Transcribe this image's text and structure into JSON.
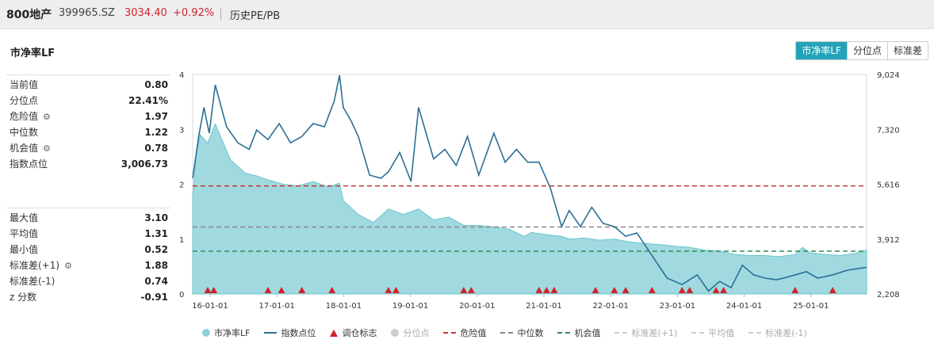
{
  "header": {
    "name": "800地产",
    "code": "399965.SZ",
    "price": "3034.40",
    "change": "+0.92%",
    "tab": "历史PE/PB"
  },
  "section_title": "市净率LF",
  "buttons": [
    "市净率LF",
    "分位点",
    "标准差"
  ],
  "stats_top": [
    {
      "label": "当前值",
      "value": "0.80",
      "gear": false
    },
    {
      "label": "分位点",
      "value": "22.41%",
      "gear": false
    },
    {
      "label": "危险值",
      "value": "1.97",
      "gear": true
    },
    {
      "label": "中位数",
      "value": "1.22",
      "gear": false
    },
    {
      "label": "机会值",
      "value": "0.78",
      "gear": true
    },
    {
      "label": "指数点位",
      "value": "3,006.73",
      "gear": false
    }
  ],
  "stats_bottom": [
    {
      "label": "最大值",
      "value": "3.10",
      "gear": false
    },
    {
      "label": "平均值",
      "value": "1.31",
      "gear": false
    },
    {
      "label": "最小值",
      "value": "0.52",
      "gear": false
    },
    {
      "label": "标准差(+1)",
      "value": "1.88",
      "gear": true
    },
    {
      "label": "标准差(-1)",
      "value": "0.74",
      "gear": false
    },
    {
      "label": "z 分数",
      "value": "-0.91",
      "gear": false
    }
  ],
  "legend": [
    {
      "label": "市净率LF",
      "type": "dot",
      "color": "#8fd3da",
      "dim": false
    },
    {
      "label": "指数点位",
      "type": "line",
      "color": "#2a6f97",
      "dim": false
    },
    {
      "label": "调仓标志",
      "type": "triangle",
      "color": "#d0232b",
      "dim": false
    },
    {
      "label": "分位点",
      "type": "dot",
      "color": "#cccccc",
      "dim": true
    },
    {
      "label": "危险值",
      "type": "dash",
      "color": "#c0392b",
      "dim": false
    },
    {
      "label": "中位数",
      "type": "dash",
      "color": "#888888",
      "dim": false
    },
    {
      "label": "机会值",
      "type": "dash",
      "color": "#2e8b57",
      "dim": false
    },
    {
      "label": "标准差(+1)",
      "type": "dash",
      "color": "#cccccc",
      "dim": true
    },
    {
      "label": "平均值",
      "type": "dash",
      "color": "#cccccc",
      "dim": true
    },
    {
      "label": "标准差(-1)",
      "type": "dash",
      "color": "#cccccc",
      "dim": true
    }
  ],
  "chart_data": {
    "type": "area",
    "x_ticks": [
      "16-01-01",
      "17-01-01",
      "18-01-01",
      "19-01-01",
      "20-01-01",
      "21-01-01",
      "22-01-01",
      "23-01-01",
      "24-01-01",
      "25-01-01"
    ],
    "y_left": {
      "ticks": [
        "0",
        "1",
        "2",
        "3",
        "4"
      ],
      "range": [
        0,
        4
      ]
    },
    "y_right": {
      "ticks": [
        "2,208",
        "3,912",
        "5,616",
        "7,320",
        "9,024"
      ],
      "range": [
        2208,
        9024
      ]
    },
    "reference_lines": {
      "danger": 1.97,
      "median": 1.22,
      "opportunity": 0.78
    },
    "colors": {
      "area": "#8fd3da",
      "area_stroke": "#6cc4cc",
      "index": "#2a6f97",
      "danger": "#c0392b",
      "median": "#888888",
      "opportunity": "#2e8b57",
      "marker": "#d0232b"
    },
    "series": [
      {
        "name": "市净率LF",
        "x": [
          0,
          0.05,
          0.1,
          0.2,
          0.3,
          0.5,
          0.7,
          0.85,
          1.0,
          1.2,
          1.4,
          1.6,
          1.8,
          1.95,
          2.0,
          2.2,
          2.4,
          2.6,
          2.8,
          3.0,
          3.2,
          3.4,
          3.6,
          3.8,
          4.0,
          4.2,
          4.4,
          4.5,
          4.7,
          4.9,
          5.0,
          5.2,
          5.4,
          5.6,
          5.8,
          6.0,
          6.2,
          6.4,
          6.6,
          6.8,
          7.0,
          7.2,
          7.4,
          7.6,
          7.8,
          8.0,
          8.1,
          8.2,
          8.4,
          8.6,
          8.8,
          8.95
        ],
        "values": [
          1.75,
          2.55,
          2.9,
          2.75,
          3.1,
          2.45,
          2.2,
          2.15,
          2.08,
          2.0,
          1.97,
          2.05,
          1.95,
          2.02,
          1.7,
          1.45,
          1.3,
          1.55,
          1.45,
          1.55,
          1.35,
          1.4,
          1.25,
          1.25,
          1.22,
          1.18,
          1.05,
          1.12,
          1.08,
          1.05,
          1.0,
          1.02,
          0.98,
          1.0,
          0.95,
          0.92,
          0.9,
          0.87,
          0.85,
          0.8,
          0.78,
          0.72,
          0.7,
          0.7,
          0.68,
          0.72,
          0.85,
          0.75,
          0.72,
          0.7,
          0.74,
          0.8
        ]
      },
      {
        "name": "指数点位",
        "x": [
          0,
          0.08,
          0.15,
          0.22,
          0.3,
          0.45,
          0.6,
          0.75,
          0.85,
          1.0,
          1.15,
          1.3,
          1.45,
          1.6,
          1.75,
          1.88,
          1.95,
          2.0,
          2.1,
          2.2,
          2.35,
          2.5,
          2.6,
          2.75,
          2.9,
          3.0,
          3.2,
          3.35,
          3.5,
          3.65,
          3.8,
          4.0,
          4.15,
          4.3,
          4.45,
          4.6,
          4.75,
          4.9,
          5.0,
          5.15,
          5.3,
          5.45,
          5.6,
          5.75,
          5.9,
          6.1,
          6.3,
          6.5,
          6.7,
          6.85,
          7.0,
          7.15,
          7.3,
          7.45,
          7.6,
          7.75,
          7.85,
          8.0,
          8.15,
          8.3,
          8.5,
          8.7,
          8.85,
          8.95
        ],
        "values": [
          5800,
          7100,
          8000,
          7200,
          8700,
          7400,
          6900,
          6700,
          7300,
          7000,
          7500,
          6900,
          7100,
          7500,
          7400,
          8200,
          9000,
          8000,
          7600,
          7100,
          5900,
          5800,
          6000,
          6600,
          5700,
          8000,
          6400,
          6700,
          6200,
          7100,
          5900,
          7200,
          6300,
          6700,
          6300,
          6300,
          5500,
          4300,
          4800,
          4300,
          4900,
          4400,
          4300,
          4000,
          4100,
          3400,
          2700,
          2500,
          2800,
          2300,
          2600,
          2400,
          3100,
          2800,
          2700,
          2650,
          2700,
          2800,
          2900,
          2700,
          2800,
          2950,
          3000,
          3035
        ]
      }
    ],
    "rebalance_markers": [
      0.2,
      0.28,
      1.0,
      1.18,
      1.45,
      1.85,
      2.6,
      2.7,
      3.6,
      3.7,
      4.6,
      4.7,
      4.8,
      5.35,
      5.6,
      5.75,
      6.1,
      6.5,
      6.6,
      6.95,
      7.05,
      8.0,
      8.5
    ]
  }
}
